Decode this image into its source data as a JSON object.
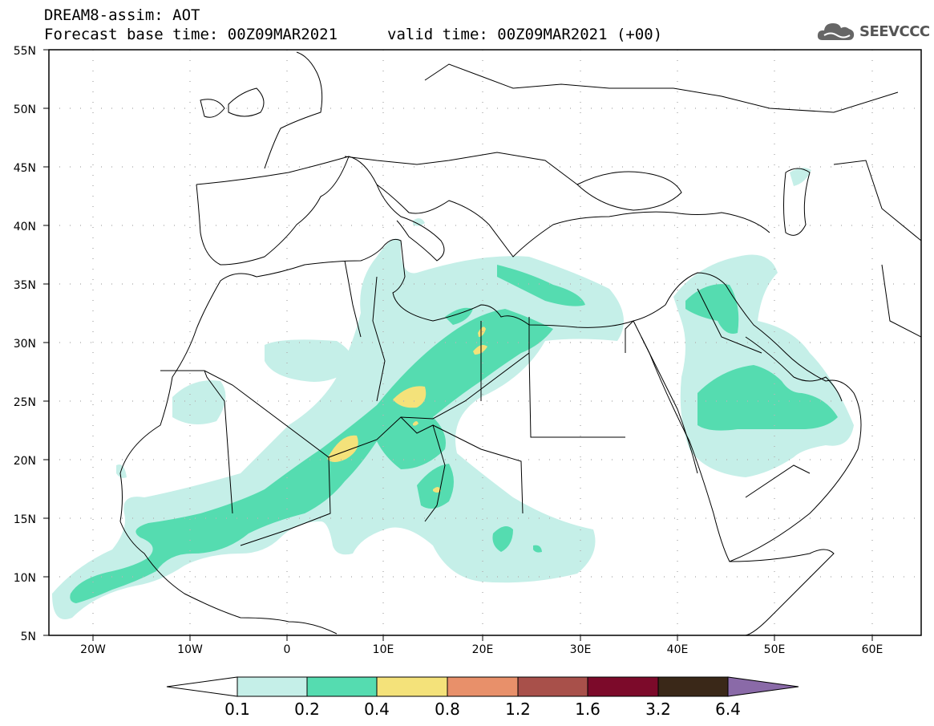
{
  "header": {
    "title": "DREAM8-assim: AOT",
    "base_time": "Forecast base time: 00Z09MAR2021",
    "valid_time": "valid time: 00Z09MAR2021 (+00)"
  },
  "logo": {
    "text": "SEEVCCC",
    "icon": "cloud-icon"
  },
  "map": {
    "lat_ticks": [
      "55N",
      "50N",
      "45N",
      "40N",
      "35N",
      "30N",
      "25N",
      "20N",
      "15N",
      "10N",
      "5N"
    ],
    "lon_ticks": [
      "20W",
      "10W",
      "0",
      "10E",
      "20E",
      "30E",
      "40E",
      "50E",
      "60E"
    ]
  },
  "colorbar": {
    "labels": [
      "0.1",
      "0.2",
      "0.4",
      "0.8",
      "1.2",
      "1.6",
      "3.2",
      "6.4"
    ],
    "colors": [
      "#ffffff",
      "#c5efe8",
      "#55dcb0",
      "#f4e27a",
      "#e8906a",
      "#a8504a",
      "#7c0a2a",
      "#3a2818",
      "#8a6aa8"
    ]
  }
}
